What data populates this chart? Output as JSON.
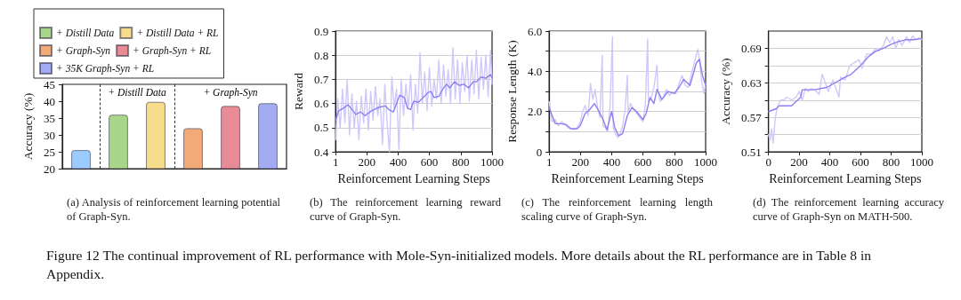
{
  "chart_data": [
    {
      "type": "bar",
      "ylabel": "Accuracy (%)",
      "categories": [
        null,
        null,
        null,
        null,
        null,
        null
      ],
      "series": [
        {
          "color": "#9ccbff",
          "values": [
            25.5,
            null,
            null,
            null,
            null,
            null
          ]
        },
        {
          "name": "+ Distill Data",
          "color": "#a8d68a",
          "values": [
            null,
            36,
            null,
            null,
            null,
            null
          ]
        },
        {
          "name": "+ Distill Data + RL",
          "color": "#f7dc8c",
          "values": [
            null,
            null,
            39.8,
            null,
            null,
            null
          ]
        },
        {
          "name": "+ Graph-Syn",
          "color": "#f2ab78",
          "values": [
            null,
            null,
            null,
            32,
            null,
            null
          ]
        },
        {
          "name": "+ Graph-Syn + RL",
          "color": "#e98b96",
          "values": [
            null,
            null,
            null,
            null,
            38.6,
            null
          ]
        },
        {
          "name": "+ 35K Graph-Syn + RL",
          "color": "#a3acf2",
          "values": [
            null,
            null,
            null,
            null,
            null,
            39.4
          ]
        }
      ],
      "ylim": [
        20,
        45
      ],
      "yticks": [
        20,
        25,
        30,
        35,
        40,
        45
      ],
      "grid": false,
      "legend": "top",
      "annotations": [
        "+ Distill Data",
        "+ Graph-Syn",
        "(a) Analysis of reinforcement learning potential of Graph-Syn.",
        "Figure 12 The continual improvement of RL performance with Mole-Syn-initialized models. More details about the RL performance are in Table 8 in Appendix."
      ]
    },
    {
      "type": "line",
      "xlabel": "Reinforcement Learning Steps",
      "ylabel": "Reward",
      "marker": "none",
      "grid": "y",
      "series": [
        {
          "color": "#cfc8fa",
          "x": [
            1,
            15,
            30,
            45,
            60,
            75,
            90,
            105,
            120,
            135,
            150,
            165,
            180,
            195,
            210,
            225,
            240,
            255,
            270,
            285,
            300,
            315,
            330,
            345,
            360,
            375,
            390,
            405,
            420,
            435,
            450,
            465,
            480,
            495,
            510,
            525,
            540,
            555,
            570,
            585,
            600,
            615,
            630,
            645,
            660,
            675,
            690,
            705,
            720,
            735,
            750,
            765,
            780,
            795,
            810,
            825,
            840,
            855,
            870,
            885,
            900,
            915,
            930,
            945,
            960,
            975,
            990,
            1000
          ],
          "values": [
            0.45,
            0.62,
            0.5,
            0.66,
            0.52,
            0.7,
            0.47,
            0.64,
            0.5,
            0.61,
            0.45,
            0.63,
            0.52,
            0.66,
            0.49,
            0.65,
            0.53,
            0.67,
            0.55,
            0.62,
            0.43,
            0.68,
            0.52,
            0.4,
            0.71,
            0.58,
            0.66,
            0.41,
            0.7,
            0.55,
            0.68,
            0.58,
            0.72,
            0.49,
            0.68,
            0.56,
            0.81,
            0.6,
            0.73,
            0.57,
            0.75,
            0.59,
            0.7,
            0.62,
            0.78,
            0.6,
            0.76,
            0.63,
            0.74,
            0.6,
            0.83,
            0.62,
            0.78,
            0.6,
            0.77,
            0.65,
            0.8,
            0.61,
            0.78,
            0.64,
            0.82,
            0.62,
            0.79,
            0.66,
            0.8,
            0.63,
            0.82,
            0.68
          ]
        },
        {
          "color": "#8b80ee",
          "x": [
            1,
            20,
            50,
            80,
            100,
            130,
            160,
            190,
            230,
            280,
            320,
            340,
            370,
            390,
            410,
            440,
            460,
            480,
            500,
            530,
            560,
            590,
            610,
            630,
            660,
            690,
            710,
            730,
            760,
            790,
            820,
            850,
            880,
            900,
            930,
            960,
            990,
            1000
          ],
          "values": [
            0.53,
            0.57,
            0.58,
            0.595,
            0.58,
            0.555,
            0.565,
            0.55,
            0.57,
            0.585,
            0.59,
            0.575,
            0.565,
            0.6,
            0.635,
            0.625,
            0.58,
            0.575,
            0.61,
            0.605,
            0.625,
            0.645,
            0.65,
            0.625,
            0.63,
            0.665,
            0.68,
            0.665,
            0.69,
            0.675,
            0.68,
            0.665,
            0.69,
            0.69,
            0.71,
            0.705,
            0.72,
            0.705
          ]
        }
      ],
      "xlim": [
        1,
        1000
      ],
      "xticks": [
        1,
        200,
        400,
        600,
        800,
        1000
      ],
      "ylim": [
        0.4,
        0.9
      ],
      "yticks": [
        0.4,
        0.5,
        0.6,
        0.7,
        0.8,
        0.9
      ],
      "annotations": [
        "(b) The reinforcement learning reward curve of Graph-Syn."
      ]
    },
    {
      "type": "line",
      "xlabel": "Reinforcement Learning Steps",
      "ylabel": "Response Length (K)",
      "marker": "none",
      "grid": "y",
      "series": [
        {
          "color": "#cfc8fa",
          "x": [
            1,
            10,
            20,
            40,
            60,
            80,
            100,
            120,
            140,
            160,
            180,
            200,
            215,
            230,
            250,
            265,
            280,
            295,
            310,
            325,
            340,
            345,
            360,
            375,
            390,
            405,
            410,
            425,
            440,
            455,
            470,
            485,
            500,
            505,
            520,
            540,
            560,
            580,
            600,
            615,
            630,
            635,
            650,
            670,
            690,
            695,
            710,
            730,
            750,
            770,
            790,
            810,
            830,
            850,
            870,
            890,
            910,
            930,
            950,
            960,
            975,
            990,
            1000
          ],
          "values": [
            2.5,
            2.0,
            1.5,
            1.6,
            1.3,
            1.5,
            1.4,
            1.2,
            1.15,
            1.1,
            1.2,
            1.5,
            2.0,
            2.3,
            1.8,
            3.4,
            2.6,
            3.1,
            2.2,
            1.7,
            4.8,
            1.3,
            1.2,
            1.0,
            2.3,
            5.7,
            1.2,
            0.9,
            0.7,
            0.9,
            1.3,
            2.0,
            3.8,
            1.9,
            2.4,
            2.1,
            1.9,
            1.7,
            1.5,
            2.3,
            5.6,
            2.5,
            2.6,
            3.2,
            4.3,
            3.0,
            2.5,
            2.7,
            3.1,
            2.8,
            3.0,
            2.9,
            3.4,
            3.8,
            3.3,
            3.2,
            3.9,
            4.5,
            5.1,
            4.6,
            3.5,
            2.9,
            3.4
          ]
        },
        {
          "color": "#8b80ee",
          "x": [
            1,
            20,
            40,
            80,
            110,
            140,
            180,
            200,
            230,
            260,
            290,
            320,
            345,
            370,
            400,
            420,
            445,
            470,
            500,
            530,
            560,
            600,
            620,
            645,
            670,
            690,
            720,
            760,
            800,
            830,
            860,
            900,
            940,
            960,
            980,
            1000
          ],
          "values": [
            2.2,
            1.8,
            1.4,
            1.4,
            1.35,
            1.15,
            1.15,
            1.3,
            1.9,
            2.1,
            2.4,
            2.0,
            1.6,
            1.1,
            2.0,
            1.2,
            0.8,
            0.9,
            1.8,
            2.2,
            2.0,
            1.6,
            1.9,
            2.7,
            2.4,
            3.1,
            2.6,
            3.0,
            2.9,
            3.2,
            3.6,
            3.3,
            4.4,
            4.6,
            3.8,
            3.3
          ]
        }
      ],
      "xlim": [
        1,
        1000
      ],
      "xticks": [
        1,
        200,
        400,
        600,
        800,
        1000
      ],
      "ylim": [
        0,
        6
      ],
      "yticks": [
        0,
        {
          "value": 1,
          "label": null
        },
        {
          "value": 2,
          "label": "2.0"
        },
        {
          "value": 3,
          "label": null
        },
        {
          "value": 4,
          "label": "4.0"
        },
        {
          "value": 5,
          "label": null
        },
        {
          "value": 6,
          "label": "6.0"
        }
      ],
      "annotations": [
        "(c) The reinforcement learning length scaling curve of Graph-Syn."
      ]
    },
    {
      "type": "line",
      "xlabel": "Reinforcement Learning Steps",
      "ylabel": "Accuracy (%)",
      "marker": "none",
      "grid": "y",
      "series": [
        {
          "color": "#cfc8fa",
          "x": [
            0,
            10,
            20,
            30,
            45,
            60,
            80,
            100,
            120,
            150,
            180,
            200,
            220,
            240,
            260,
            280,
            300,
            330,
            350,
            370,
            390,
            420,
            440,
            460,
            470,
            500,
            530,
            560,
            590,
            610,
            640,
            670,
            700,
            720,
            750,
            770,
            790,
            810,
            830,
            850,
            870,
            900,
            920,
            940,
            960,
            980,
            1000
          ],
          "values": [
            0.54,
            0.53,
            0.55,
            0.525,
            0.57,
            0.59,
            0.6,
            0.6,
            0.605,
            0.6,
            0.605,
            0.615,
            0.6,
            0.62,
            0.615,
            0.62,
            0.618,
            0.61,
            0.645,
            0.63,
            0.615,
            0.635,
            0.62,
            0.605,
            0.64,
            0.635,
            0.66,
            0.665,
            0.67,
            0.655,
            0.68,
            0.68,
            0.69,
            0.685,
            0.695,
            0.71,
            0.7,
            0.71,
            0.69,
            0.705,
            0.695,
            0.71,
            0.7,
            0.712,
            0.705,
            0.708,
            0.705
          ]
        },
        {
          "color": "#8b80ee",
          "x": [
            0,
            50,
            70,
            150,
            210,
            220,
            300,
            380,
            500,
            540,
            600,
            650,
            700,
            750,
            800,
            850,
            900,
            950,
            1000
          ],
          "values": [
            0.58,
            0.585,
            0.59,
            0.59,
            0.605,
            0.618,
            0.618,
            0.622,
            0.64,
            0.645,
            0.66,
            0.675,
            0.685,
            0.69,
            0.697,
            0.702,
            0.705,
            0.705,
            0.707
          ]
        }
      ],
      "xlim": [
        0,
        1000
      ],
      "xticks": [
        0,
        200,
        400,
        600,
        800,
        1000
      ],
      "ylim": [
        0.51,
        0.72
      ],
      "yticks": [
        0.51,
        {
          "value": 0.54,
          "label": null
        },
        0.57,
        {
          "value": 0.6,
          "label": null
        },
        0.63,
        {
          "value": 0.66,
          "label": null
        },
        0.69
      ],
      "annotations": [
        "(d) The reinforcement learning accuracy curve of Graph-Syn on MATH-500."
      ]
    }
  ]
}
